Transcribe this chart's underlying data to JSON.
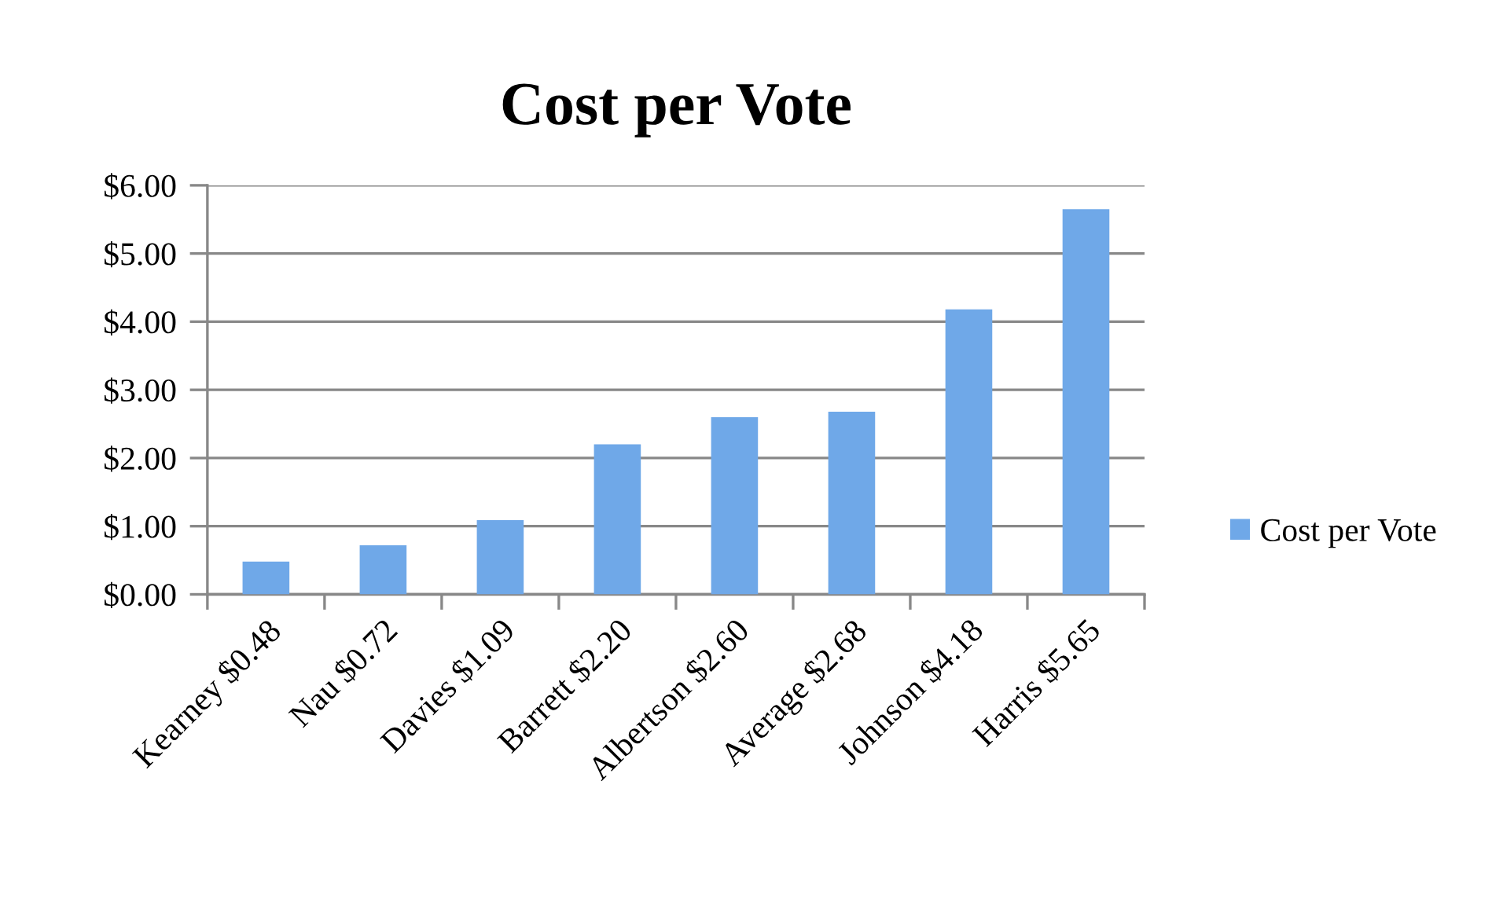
{
  "chart_data": {
    "type": "bar",
    "title": "Cost per Vote",
    "categories": [
      "Kearney $0.48",
      "Nau $0.72",
      "Davies $1.09",
      "Barrett $2.20",
      "Albertson $2.60",
      "Average $2.68",
      "Johnson $4.18",
      "Harris $5.65"
    ],
    "series": [
      {
        "name": "Cost per Vote",
        "color": "#6fa8e8",
        "values": [
          0.48,
          0.72,
          1.09,
          2.2,
          2.6,
          2.68,
          4.18,
          5.65
        ]
      }
    ],
    "ylim": [
      0,
      6
    ],
    "yticks": [
      {
        "value": 0,
        "label": "$0.00"
      },
      {
        "value": 1,
        "label": "$1.00"
      },
      {
        "value": 2,
        "label": "$2.00"
      },
      {
        "value": 3,
        "label": "$3.00"
      },
      {
        "value": 4,
        "label": "$4.00"
      },
      {
        "value": 5,
        "label": "$5.00"
      },
      {
        "value": 6,
        "label": "$6.00"
      }
    ],
    "grid": "y",
    "legend": "right"
  }
}
